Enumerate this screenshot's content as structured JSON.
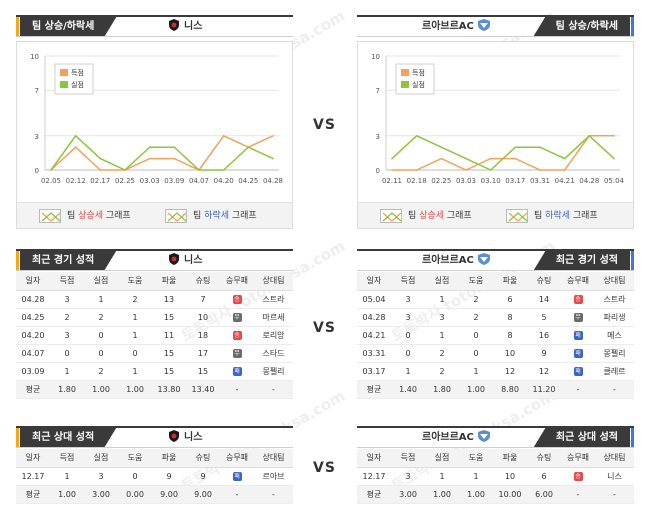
{
  "vs_label": "VS",
  "watermark": "토토박사 totobaksa.com",
  "colors": {
    "scored": "#f7a05a",
    "conceded": "#8cc63f",
    "win": "#e64a4a",
    "draw": "#6b6b6b",
    "loss": "#3f63c4"
  },
  "trend": {
    "left": {
      "title": "팀 상승/하락세",
      "team": "니스",
      "crest_icon": "shield-icon",
      "legend": [
        {
          "prefix": "팀 ",
          "word": "상승세",
          "suffix": " 그래프",
          "color": "#e64a4a"
        },
        {
          "prefix": "팀 ",
          "word": "하락세",
          "suffix": " 그래프",
          "color": "#3f63c4"
        }
      ]
    },
    "right": {
      "title": "팀 상승/하락세",
      "team": "르아브르AC",
      "crest_icon": "shield-icon",
      "legend": [
        {
          "prefix": "팀 ",
          "word": "상승세",
          "suffix": " 그래프",
          "color": "#e64a4a"
        },
        {
          "prefix": "팀 ",
          "word": "하락세",
          "suffix": " 그래프",
          "color": "#3f63c4"
        }
      ]
    }
  },
  "chart_data": [
    {
      "type": "line",
      "x": [
        "02.05",
        "02.12",
        "02.17",
        "02.25",
        "03.03",
        "03.09",
        "04.07",
        "04.20",
        "04.25",
        "04.28"
      ],
      "yticks": [
        0,
        3,
        7,
        10
      ],
      "ylim": [
        0,
        10
      ],
      "legend_inset": [
        "득점",
        "실점"
      ],
      "series": [
        {
          "name": "득점",
          "color": "#f7a05a",
          "values": [
            0,
            2,
            0,
            0,
            1,
            1,
            0,
            3,
            2,
            3
          ]
        },
        {
          "name": "실점",
          "color": "#8cc63f",
          "values": [
            0,
            3,
            1,
            0,
            2,
            2,
            0,
            0,
            2,
            1
          ]
        }
      ]
    },
    {
      "type": "line",
      "x": [
        "02.11",
        "02.18",
        "02.25",
        "03.03",
        "03.10",
        "03.17",
        "03.31",
        "04.21",
        "04.28",
        "05.04"
      ],
      "yticks": [
        0,
        3,
        7,
        10
      ],
      "ylim": [
        0,
        10
      ],
      "legend_inset": [
        "득점",
        "실점"
      ],
      "series": [
        {
          "name": "득점",
          "color": "#f7a05a",
          "values": [
            0,
            0,
            1,
            0,
            1,
            1,
            0,
            0,
            3,
            3
          ]
        },
        {
          "name": "실점",
          "color": "#8cc63f",
          "values": [
            1,
            3,
            2,
            1,
            0,
            2,
            2,
            1,
            3,
            1
          ]
        }
      ]
    }
  ],
  "recent": {
    "left": {
      "title": "최근 경기 성적",
      "team": "니스"
    },
    "right": {
      "title": "최근 경기 성적",
      "team": "르아브르AC"
    },
    "columns": [
      "일자",
      "득점",
      "실점",
      "도움",
      "파울",
      "슈팅",
      "승무패",
      "상대팀"
    ],
    "left_rows": [
      [
        "04.28",
        "3",
        "1",
        "2",
        "13",
        "7",
        "승",
        "스트라"
      ],
      [
        "04.25",
        "2",
        "2",
        "1",
        "15",
        "10",
        "무",
        "마르세"
      ],
      [
        "04.20",
        "3",
        "0",
        "1",
        "11",
        "18",
        "승",
        "로리앙"
      ],
      [
        "04.07",
        "0",
        "0",
        "0",
        "15",
        "17",
        "무",
        "스타드"
      ],
      [
        "03.09",
        "1",
        "2",
        "1",
        "15",
        "15",
        "패",
        "몽펠리"
      ]
    ],
    "left_avg": [
      "평균",
      "1.80",
      "1.00",
      "1.00",
      "13.80",
      "13.40",
      "-",
      "-"
    ],
    "right_rows": [
      [
        "05.04",
        "3",
        "1",
        "2",
        "6",
        "14",
        "승",
        "스트라"
      ],
      [
        "04.28",
        "3",
        "3",
        "2",
        "8",
        "5",
        "무",
        "파리생"
      ],
      [
        "04.21",
        "0",
        "1",
        "0",
        "8",
        "16",
        "패",
        "메스"
      ],
      [
        "03.31",
        "0",
        "2",
        "0",
        "10",
        "9",
        "패",
        "몽펠리"
      ],
      [
        "03.17",
        "1",
        "2",
        "1",
        "12",
        "12",
        "패",
        "클레르"
      ]
    ],
    "right_avg": [
      "평균",
      "1.40",
      "1.80",
      "1.00",
      "8.80",
      "11.20",
      "-",
      "-"
    ]
  },
  "h2h": {
    "left": {
      "title": "최근 상대 성적",
      "team": "니스"
    },
    "right": {
      "title": "최근 상대 성적",
      "team": "르아브르AC"
    },
    "left_rows": [
      [
        "12.17",
        "1",
        "3",
        "0",
        "9",
        "9",
        "패",
        "르아브"
      ]
    ],
    "left_avg": [
      "평균",
      "1.00",
      "3.00",
      "0.00",
      "9.00",
      "9.00",
      "-",
      "-"
    ],
    "right_rows": [
      [
        "12.17",
        "3",
        "1",
        "1",
        "10",
        "6",
        "승",
        "니스"
      ]
    ],
    "right_avg": [
      "평균",
      "3.00",
      "1.00",
      "1.00",
      "10.00",
      "6.00",
      "-",
      "-"
    ]
  }
}
